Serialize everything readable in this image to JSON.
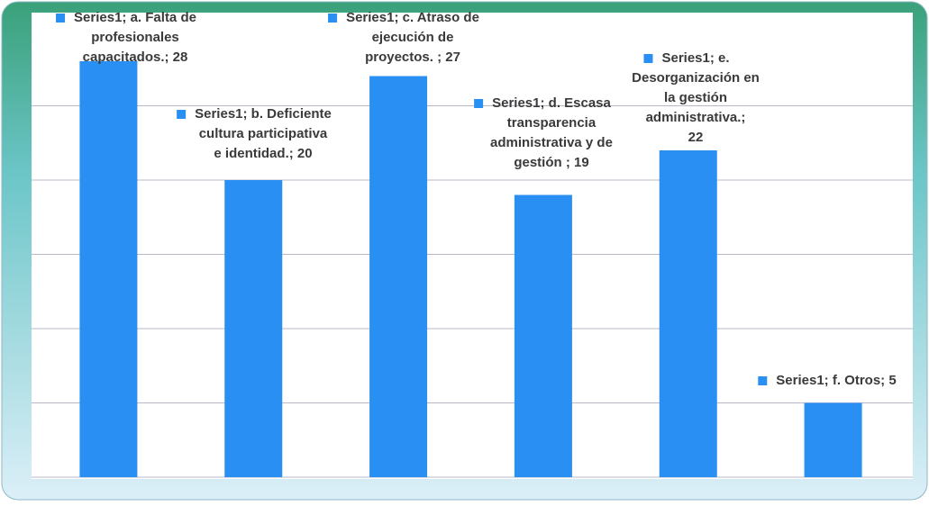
{
  "chart_data": {
    "type": "bar",
    "series": [
      {
        "name": "Series1",
        "color": "#2a8ff2",
        "values": [
          28,
          20,
          27,
          19,
          22,
          5
        ],
        "value_labels": [
          "Series1; a. Falta de profesionales capacitados.; 28",
          "Series1; b. Deficiente cultura participativa e identidad.; 20",
          "Series1; c. Atraso de ejecución de proyectos. ; 27",
          "Series1; d. Escasa transparencia administrativa y de gestión ; 19",
          "Series1; e. Desorganización en la gestión administrativa.; 22",
          "Series1; f. Otros; 5"
        ]
      }
    ],
    "ylim": [
      0,
      30
    ],
    "yticks": [
      0,
      5,
      10,
      15,
      20,
      25
    ],
    "grid": true
  }
}
